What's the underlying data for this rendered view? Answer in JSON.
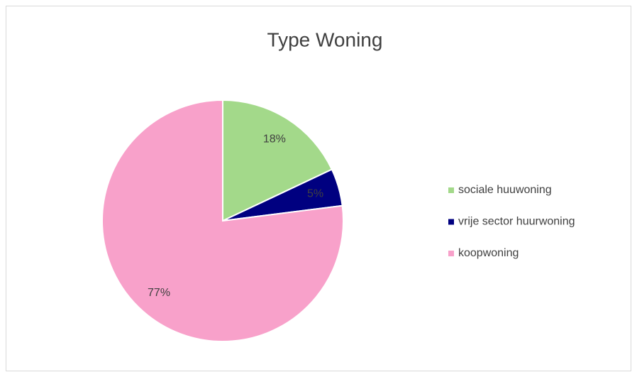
{
  "chart_data": {
    "type": "pie",
    "title": "Type Woning",
    "categories": [
      "sociale huuwoning",
      "vrije sector huurwoning",
      "koopwoning"
    ],
    "values": [
      18,
      5,
      77
    ],
    "value_labels": [
      "18%",
      "5%",
      "77%"
    ],
    "colors": [
      "#a3d98a",
      "#000080",
      "#f8a1ca"
    ],
    "legend": "right"
  }
}
